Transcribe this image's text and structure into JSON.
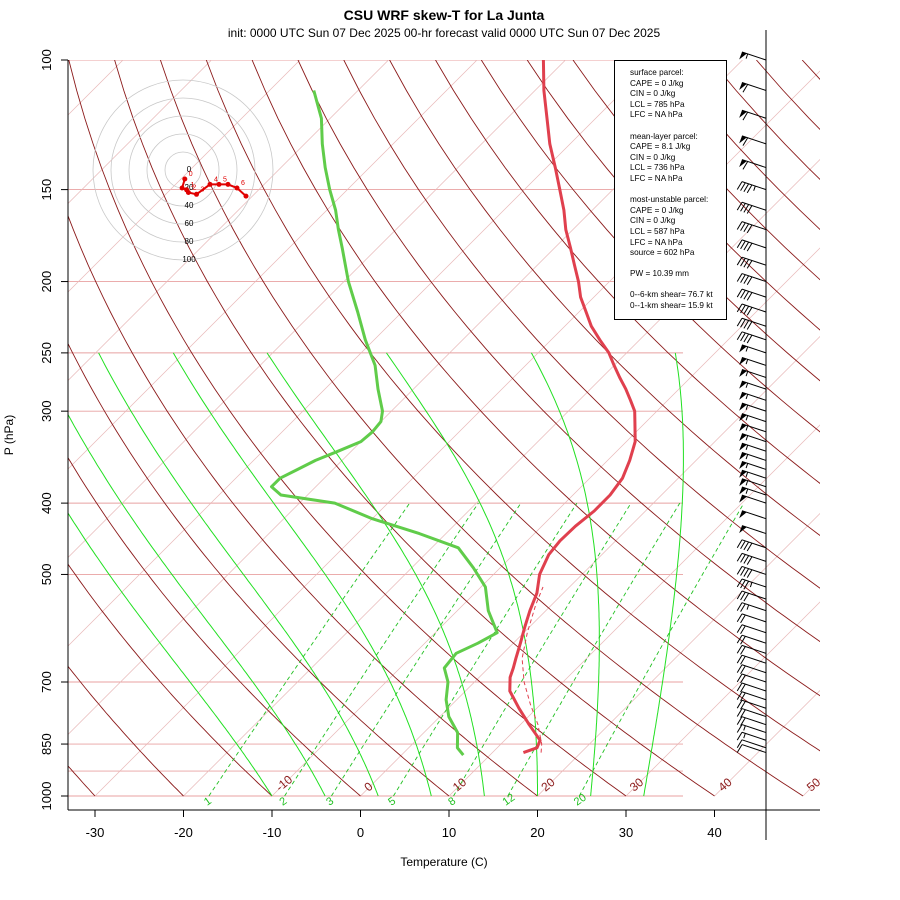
{
  "chart_data": {
    "type": "skew-t",
    "title": "CSU WRF skew-T for La Junta",
    "subtitle": "init: 0000 UTC Sun 07 Dec 2025     00-hr forecast valid 0000 UTC Sun 07 Dec 2025",
    "xlabel": "Temperature (C)",
    "ylabel": "P (hPa)",
    "xlim": [
      -33,
      46
    ],
    "ylim": [
      1000,
      100
    ],
    "x_ticks": [
      -30,
      -20,
      -10,
      0,
      10,
      20,
      30,
      40
    ],
    "p_ticks": [
      1000,
      850,
      700,
      500,
      400,
      300,
      250,
      200,
      150,
      100
    ],
    "extra_isobars": [
      925
    ],
    "isotherm_labels": [
      {
        "t": -10,
        "label": "-10"
      },
      {
        "t": 0,
        "label": "0"
      },
      {
        "t": 10,
        "label": "10"
      },
      {
        "t": 20,
        "label": "20"
      },
      {
        "t": 30,
        "label": "30"
      },
      {
        "t": 40,
        "label": "40"
      },
      {
        "t": 50,
        "label": "50"
      }
    ],
    "mixing_ratio_labels": [
      "1",
      "2",
      "3",
      "5",
      "8",
      "12",
      "20"
    ],
    "mixing_ratios": [
      1,
      2,
      3,
      5,
      8,
      12,
      20
    ],
    "temperature": {
      "p": [
        873,
        860,
        840,
        800,
        760,
        720,
        690,
        670,
        650,
        620,
        590,
        560,
        530,
        500,
        470,
        450,
        430,
        410,
        390,
        370,
        350,
        330,
        310,
        300,
        290,
        280,
        270,
        260,
        250,
        240,
        230,
        220,
        210,
        200,
        190,
        180,
        170,
        160,
        150,
        140,
        130,
        120,
        110,
        100
      ],
      "t": [
        13.5,
        14.5,
        14.0,
        11.0,
        8.0,
        5.0,
        3.5,
        2.8,
        2.0,
        0.8,
        -0.5,
        -1.8,
        -3.0,
        -4.8,
        -6.0,
        -6.3,
        -6.2,
        -5.8,
        -5.8,
        -6.3,
        -7.5,
        -9.0,
        -11.3,
        -12.5,
        -14.2,
        -16.0,
        -18.0,
        -20.0,
        -22.0,
        -24.5,
        -27.0,
        -29.2,
        -31.5,
        -33.5,
        -35.8,
        -38.2,
        -40.8,
        -43.2,
        -46.0,
        -49.0,
        -52.3,
        -55.5,
        -59.0,
        -62.5
      ]
    },
    "dewpoint": {
      "p": [
        880,
        860,
        820,
        780,
        740,
        700,
        670,
        640,
        620,
        600,
        560,
        520,
        490,
        460,
        440,
        420,
        400,
        390,
        380,
        370,
        360,
        350,
        340,
        330,
        320,
        310,
        300,
        280,
        260,
        240,
        220,
        200,
        180,
        170,
        160,
        150,
        140,
        130,
        120,
        110
      ],
      "t": [
        7.0,
        5.5,
        3.8,
        1.0,
        -1.2,
        -3.0,
        -5.0,
        -5.3,
        -4.0,
        -3.0,
        -6.5,
        -9.5,
        -13.0,
        -17.0,
        -23.0,
        -30.0,
        -36.0,
        -43.0,
        -45.0,
        -45.0,
        -44.0,
        -43.0,
        -41.5,
        -40.0,
        -39.8,
        -40.0,
        -41.0,
        -44.0,
        -47.0,
        -51.0,
        -55.0,
        -59.5,
        -64.0,
        -66.5,
        -69.0,
        -72.0,
        -75.0,
        -78.0,
        -81.0,
        -85.0
      ]
    },
    "parcel_trace": {
      "p": [
        873,
        850,
        800,
        750,
        700,
        650,
        600,
        550,
        520
      ],
      "t": [
        15.5,
        14.6,
        12.0,
        8.8,
        5.6,
        2.7,
        0.4,
        -1.8,
        -3.0
      ]
    },
    "hodograph": {
      "ring_labels": [
        "0",
        "20",
        "40",
        "60",
        "80",
        "100"
      ],
      "ring_values": [
        0,
        20,
        40,
        60,
        80,
        100
      ],
      "height_labels": [
        "0",
        "1",
        "2",
        "3",
        "4",
        "5",
        "6"
      ],
      "u": [
        2,
        -1,
        4,
        6,
        15,
        30,
        40,
        50,
        60,
        70
      ],
      "v": [
        -10,
        -20,
        -22,
        -25,
        -27,
        -16,
        -16,
        -16,
        -20,
        -29
      ]
    },
    "wind_barbs": {
      "p": [
        100,
        110,
        120,
        130,
        140,
        150,
        160,
        170,
        180,
        190,
        200,
        210,
        220,
        230,
        240,
        250,
        260,
        270,
        280,
        290,
        300,
        310,
        320,
        330,
        340,
        350,
        360,
        370,
        380,
        390,
        400,
        420,
        440,
        460,
        480,
        500,
        520,
        540,
        560,
        580,
        600,
        620,
        640,
        660,
        680,
        700,
        720,
        740,
        760,
        780,
        800,
        820,
        840,
        860,
        873
      ],
      "speed_kt": [
        55,
        60,
        60,
        60,
        60,
        45,
        40,
        40,
        40,
        40,
        40,
        40,
        40,
        40,
        40,
        55,
        55,
        55,
        55,
        55,
        55,
        55,
        55,
        55,
        55,
        55,
        55,
        55,
        55,
        55,
        50,
        50,
        50,
        40,
        40,
        40,
        35,
        30,
        25,
        20,
        20,
        20,
        20,
        20,
        20,
        20,
        20,
        20,
        20,
        20,
        20,
        15,
        15,
        10,
        10
      ]
    }
  },
  "info": {
    "surface": [
      "surface parcel:",
      "CAPE = 0 J/kg",
      "CIN = 0 J/kg",
      "LCL = 785 hPa",
      "LFC = NA hPa"
    ],
    "mean_layer": [
      "mean-layer parcel:",
      "CAPE = 8.1 J/kg",
      "CIN = 0 J/kg",
      "LCL = 736 hPa",
      "LFC = NA hPa"
    ],
    "most_unstable": [
      "most-unstable parcel:",
      "CAPE = 0 J/kg",
      "CIN = 0 J/kg",
      "LCL = 587 hPa",
      "LFC = NA hPa",
      "source = 602 hPa"
    ],
    "pw": [
      "PW =  10.39 mm"
    ],
    "shear": [
      "0--6-km shear= 76.7 kt",
      "0--1-km shear= 15.9 kt"
    ]
  },
  "colors": {
    "isotherm": "#b03030",
    "dry_adiabat": "#8b1a1a",
    "isobar": "#e8a0a0",
    "moist_adiabat": "#22e022",
    "mixing_ratio": "#22c022",
    "temperature": "#e0404e",
    "dewpoint": "#60cc4a",
    "hodograph": "#e00000"
  }
}
